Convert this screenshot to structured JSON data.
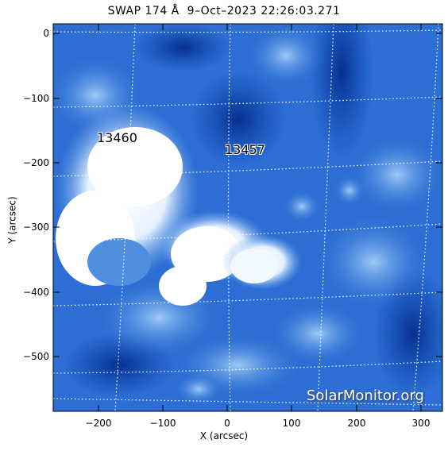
{
  "title": "SWAP 174 Å  9–Oct–2023 22:26:03.271",
  "axes": {
    "xlabel": "X (arcsec)",
    "ylabel": "Y (arcsec)",
    "xticks": [
      "−200",
      "−100",
      "0",
      "100",
      "200",
      "300"
    ],
    "yticks": [
      "0",
      "−100",
      "−200",
      "−300",
      "−400",
      "−500"
    ]
  },
  "regions": [
    {
      "label": "13460"
    },
    {
      "label": "13457"
    }
  ],
  "watermark": "SolarMonitor.org",
  "colors": {
    "background_dark": "#0a3fa8",
    "mid_blue": "#2f74d6",
    "light_blue": "#8fc0f2",
    "saturated": "#ffffff",
    "grid": "#ffffff"
  }
}
